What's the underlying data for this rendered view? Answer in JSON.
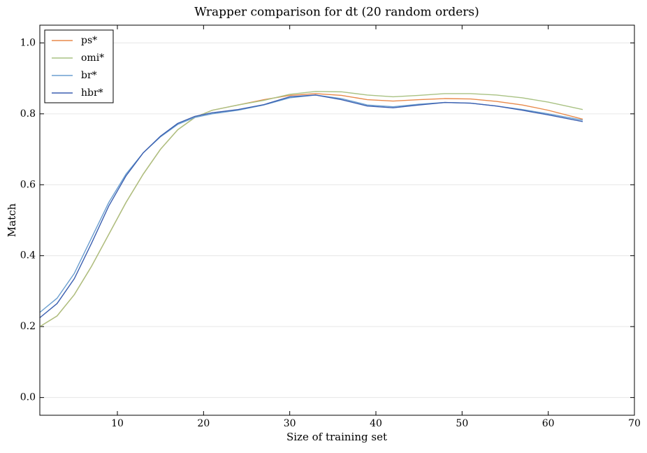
{
  "chart_data": {
    "type": "line",
    "title": "Wrapper comparison for dt (20 random orders)",
    "x_label": "Size of training set",
    "y_label": "Match",
    "x": [
      1,
      3,
      5,
      7,
      9,
      11,
      13,
      15,
      17,
      19,
      21,
      24,
      27,
      30,
      33,
      36,
      39,
      42,
      45,
      48,
      51,
      54,
      57,
      60,
      64
    ],
    "series": [
      {
        "name": "ps*",
        "color": "#e8894a",
        "values": [
          0.2,
          0.23,
          0.29,
          0.37,
          0.46,
          0.55,
          0.63,
          0.7,
          0.755,
          0.79,
          0.81,
          0.825,
          0.84,
          0.852,
          0.857,
          0.852,
          0.84,
          0.836,
          0.84,
          0.843,
          0.842,
          0.835,
          0.825,
          0.81,
          0.785
        ]
      },
      {
        "name": "omi*",
        "color": "#a9c283",
        "values": [
          0.2,
          0.23,
          0.29,
          0.37,
          0.46,
          0.55,
          0.63,
          0.7,
          0.755,
          0.79,
          0.81,
          0.825,
          0.838,
          0.855,
          0.863,
          0.862,
          0.853,
          0.848,
          0.852,
          0.857,
          0.857,
          0.853,
          0.845,
          0.833,
          0.812
        ]
      },
      {
        "name": "br*",
        "color": "#6b9fd0",
        "values": [
          0.24,
          0.28,
          0.35,
          0.45,
          0.55,
          0.63,
          0.69,
          0.735,
          0.77,
          0.79,
          0.8,
          0.81,
          0.825,
          0.845,
          0.853,
          0.843,
          0.825,
          0.82,
          0.827,
          0.832,
          0.83,
          0.822,
          0.812,
          0.8,
          0.782
        ]
      },
      {
        "name": "hbr*",
        "color": "#3b5fb0",
        "values": [
          0.225,
          0.265,
          0.335,
          0.435,
          0.54,
          0.625,
          0.69,
          0.737,
          0.773,
          0.793,
          0.803,
          0.812,
          0.826,
          0.848,
          0.853,
          0.84,
          0.822,
          0.817,
          0.825,
          0.832,
          0.83,
          0.822,
          0.81,
          0.797,
          0.778
        ]
      }
    ],
    "xlim": [
      1,
      70
    ],
    "xticks": [
      10,
      20,
      30,
      40,
      50,
      60,
      70
    ],
    "ylim": [
      -0.05,
      1.05
    ],
    "yticks": [
      {
        "value": 0,
        "label": "0.0"
      },
      0.2,
      0.4,
      0.6,
      0.8,
      {
        "value": 1,
        "label": "1.0"
      }
    ],
    "grid": true,
    "legend": "upper-left"
  }
}
